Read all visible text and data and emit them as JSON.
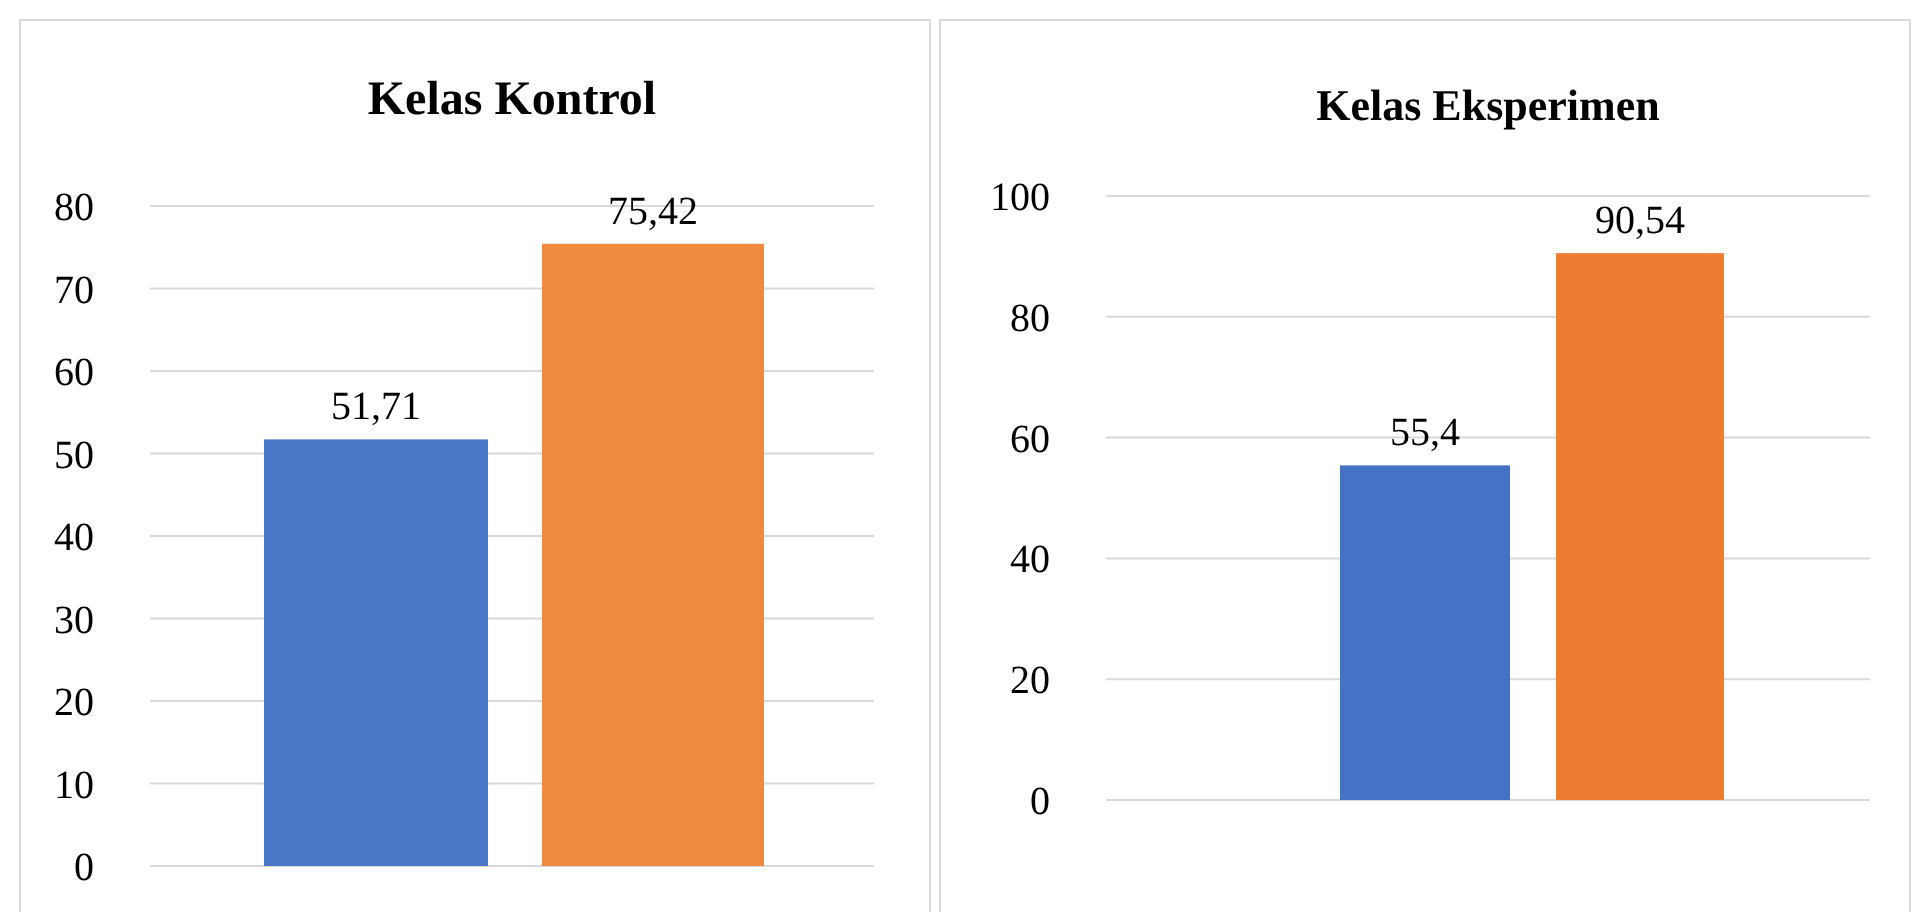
{
  "chart_data": [
    {
      "type": "bar",
      "title": "Kelas Kontrol",
      "categories": [
        null,
        null
      ],
      "values": [
        51.71,
        75.42
      ],
      "colors": [
        "#4a78c9",
        "#f08a3e"
      ],
      "value_labels": [
        "51,71",
        "75,42"
      ],
      "ylim": [
        0,
        80
      ],
      "yticks": [
        0,
        10,
        20,
        30,
        40,
        50,
        60,
        70,
        80
      ],
      "grid": "y"
    },
    {
      "type": "bar",
      "title": "Kelas Eksperimen",
      "categories": [
        null,
        null
      ],
      "values": [
        55.4,
        90.54
      ],
      "colors": [
        "#4472c4",
        "#ed7d31"
      ],
      "value_labels": [
        "55,4",
        "90,54"
      ],
      "ylim": [
        0,
        100
      ],
      "yticks": [
        0,
        20,
        40,
        60,
        80,
        100
      ],
      "grid": "y"
    }
  ]
}
